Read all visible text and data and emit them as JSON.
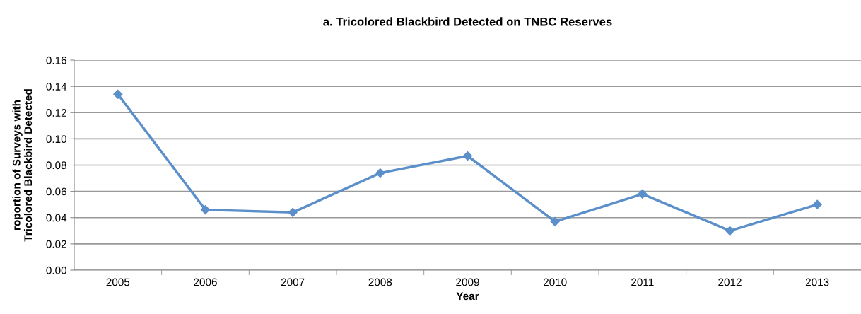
{
  "chart_data": {
    "type": "line",
    "title": "a. Tricolored Blackbird Detected on TNBC Reserves",
    "xlabel": "Year",
    "ylabel": "roportion of Surveys with\nTricolored Blackbird Detected",
    "categories": [
      "2005",
      "2006",
      "2007",
      "2008",
      "2009",
      "2010",
      "2011",
      "2012",
      "2013"
    ],
    "series": [
      {
        "color": "#5b8fc9",
        "values": [
          0.134,
          0.046,
          0.044,
          0.074,
          0.087,
          0.037,
          0.058,
          0.03,
          0.05
        ]
      }
    ],
    "ylim": [
      0,
      0.16
    ],
    "yticks": [
      {
        "value": 0,
        "label": "0.00"
      },
      {
        "value": 0.02,
        "label": "0.02"
      },
      {
        "value": 0.04,
        "label": "0.04"
      },
      {
        "value": 0.06,
        "label": "0.06"
      },
      {
        "value": 0.08,
        "label": "0.08"
      },
      {
        "value": 0.1,
        "label": "0.10"
      },
      {
        "value": 0.12,
        "label": "0.12"
      },
      {
        "value": 0.14,
        "label": "0.14"
      },
      {
        "value": 0.16,
        "label": "0.16"
      }
    ],
    "grid": "y",
    "marker": "diamond",
    "line_style": "solid"
  }
}
